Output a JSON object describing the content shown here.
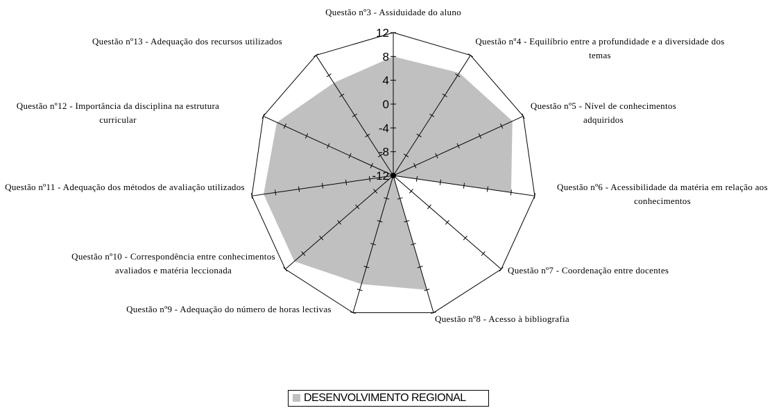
{
  "chart_data": {
    "type": "radar",
    "categories": [
      "Questão nº3 - Assiduidade do aluno",
      "Questão nº4 - Equilíbrio entre a profundidade e a diversidade dos temas",
      "Questão nº5 - Nível de conhecimentos adquiridos",
      "Questão nº6 - Acessibilidade da matéria em relação aos conhecimentos",
      "Questão nº7 - Coordenação entre docentes",
      "Questão nº8 - Acesso à bibliografia",
      "Questão nº9 - Adequação do número de horas lectivas",
      "Questão nº10 - Correspondência entre conhecimentos avaliados e matéria leccionada",
      "Questão nº11 - Adequação dos métodos de avaliação utilizados",
      "Questão nº12 - Importância da disciplina na estrutura curricular",
      "Questão nº13 - Adequação dos recursos utilizados"
    ],
    "series": [
      {
        "name": "DESENVOLVIMENTO REGIONAL",
        "color": "#c0c0c0",
        "values": [
          8,
          8.5,
          10,
          8,
          -12,
          8,
          7,
          10,
          10,
          9.5,
          6.5
        ]
      }
    ],
    "ylim": [
      -12,
      12
    ],
    "yticks": [
      -12,
      -8,
      -4,
      0,
      4,
      8,
      12
    ]
  }
}
